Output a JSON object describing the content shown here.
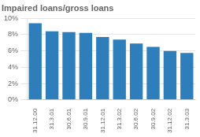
{
  "chart_data": {
    "type": "bar",
    "title": "Impaired loans/gross loans",
    "categories": [
      "31.12.00",
      "31.3.01",
      "30.6.01",
      "30.9.01",
      "31.12.01",
      "31.3.02",
      "30.6.02",
      "30.9.02",
      "31.12.02",
      "31.3.03"
    ],
    "values": [
      9.4,
      8.4,
      8.3,
      8.2,
      7.7,
      7.4,
      6.9,
      6.5,
      6.0,
      5.75
    ],
    "color": "#2e7ebb",
    "ylim": [
      0,
      10
    ],
    "yticks": [
      {
        "value": 0,
        "label": "0%"
      },
      {
        "value": 2,
        "label": "2%"
      },
      {
        "value": 4,
        "label": "4%"
      },
      {
        "value": 6,
        "label": "6%"
      },
      {
        "value": 8,
        "label": "8%"
      },
      {
        "value": 10,
        "label": "10%"
      }
    ],
    "grid": true
  }
}
